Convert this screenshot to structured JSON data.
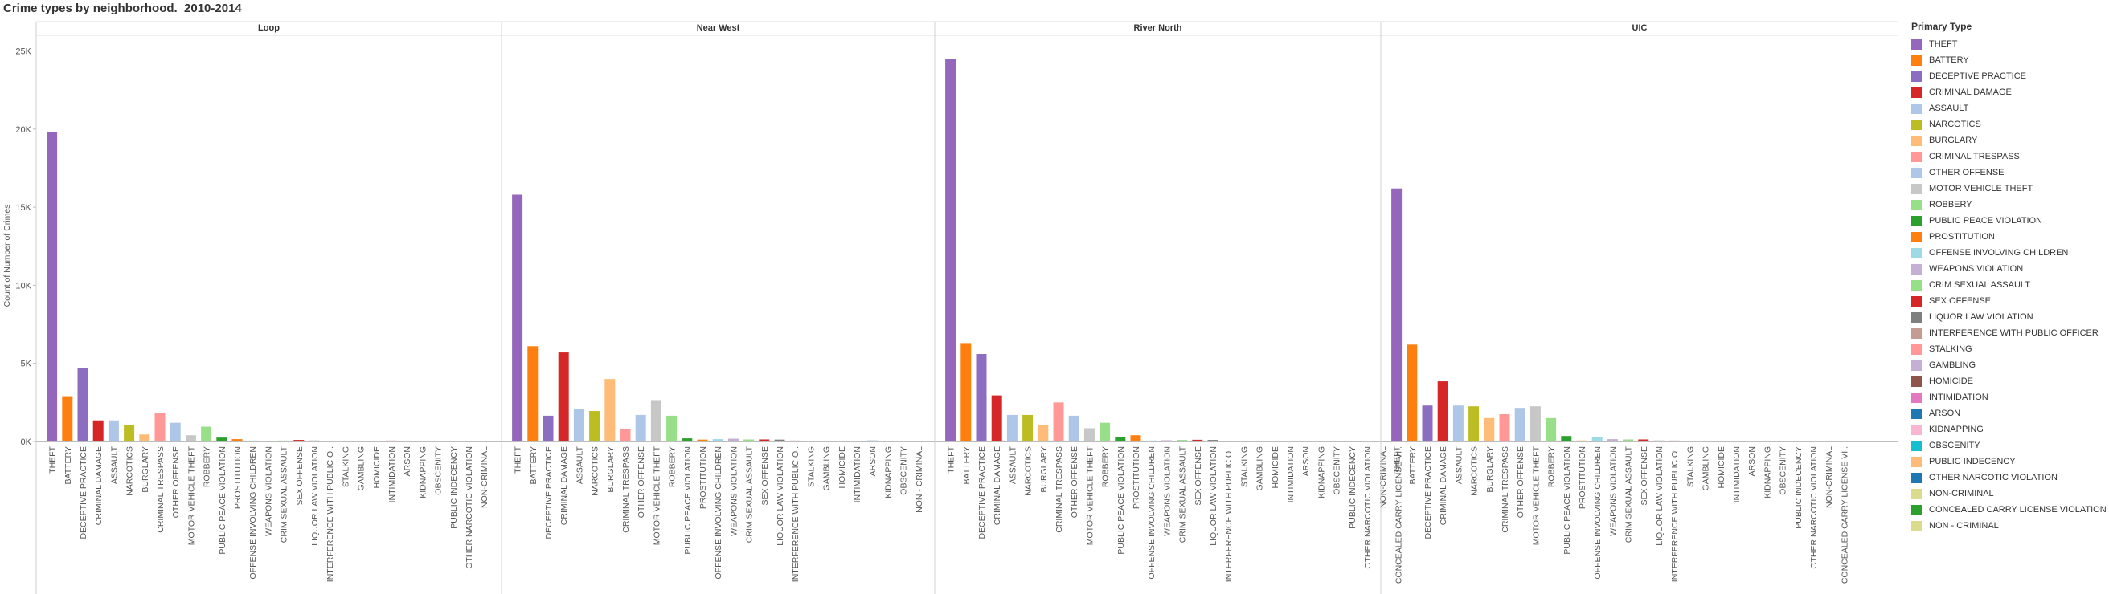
{
  "title": "Crime types by neighborhood.  2010-2014",
  "legend": {
    "title": "Primary Type"
  },
  "chart_data": {
    "type": "bar",
    "title": "Crime types by neighborhood.  2010-2014",
    "ylabel": "Count of Number of Crimes",
    "ylim": [
      0,
      26000
    ],
    "yticks": [
      0,
      5000,
      10000,
      15000,
      20000,
      25000
    ],
    "ytick_labels": [
      "0K",
      "5K",
      "10K",
      "15K",
      "20K",
      "25K"
    ],
    "legend_position": "right",
    "crime_types": [
      {
        "name": "THEFT",
        "color": "#9467bd"
      },
      {
        "name": "BATTERY",
        "color": "#ff7f0e"
      },
      {
        "name": "DECEPTIVE PRACTICE",
        "color": "#8c6dbf"
      },
      {
        "name": "CRIMINAL DAMAGE",
        "color": "#d62728"
      },
      {
        "name": "ASSAULT",
        "color": "#aec7e8"
      },
      {
        "name": "NARCOTICS",
        "color": "#bcbd22"
      },
      {
        "name": "BURGLARY",
        "color": "#ffbb78"
      },
      {
        "name": "CRIMINAL TRESPASS",
        "color": "#ff9896"
      },
      {
        "name": "OTHER OFFENSE",
        "color": "#aec7e8"
      },
      {
        "name": "MOTOR VEHICLE THEFT",
        "color": "#c7c7c7"
      },
      {
        "name": "ROBBERY",
        "color": "#98df8a"
      },
      {
        "name": "PUBLIC PEACE VIOLATION",
        "color": "#2ca02c"
      },
      {
        "name": "PROSTITUTION",
        "color": "#ff7f0e"
      },
      {
        "name": "OFFENSE INVOLVING CHILDREN",
        "color": "#9edae5"
      },
      {
        "name": "WEAPONS VIOLATION",
        "color": "#c5b0d5"
      },
      {
        "name": "CRIM SEXUAL ASSAULT",
        "color": "#98df8a"
      },
      {
        "name": "SEX OFFENSE",
        "color": "#d62728"
      },
      {
        "name": "LIQUOR LAW VIOLATION",
        "color": "#7f7f7f"
      },
      {
        "name": "INTERFERENCE WITH PUBLIC OFFICER",
        "color": "#c49c94"
      },
      {
        "name": "STALKING",
        "color": "#ff9896"
      },
      {
        "name": "GAMBLING",
        "color": "#c5b0d5"
      },
      {
        "name": "HOMICIDE",
        "color": "#8c564b"
      },
      {
        "name": "INTIMIDATION",
        "color": "#e377c2"
      },
      {
        "name": "ARSON",
        "color": "#1f77b4"
      },
      {
        "name": "KIDNAPPING",
        "color": "#f7b6d2"
      },
      {
        "name": "OBSCENITY",
        "color": "#17becf"
      },
      {
        "name": "PUBLIC INDECENCY",
        "color": "#ffbb78"
      },
      {
        "name": "OTHER NARCOTIC VIOLATION",
        "color": "#1f77b4"
      },
      {
        "name": "NON-CRIMINAL",
        "color": "#dbdb8d"
      },
      {
        "name": "CONCEALED CARRY LICENSE VIOLATION",
        "color": "#2ca02c"
      },
      {
        "name": "NON - CRIMINAL",
        "color": "#dbdb8d"
      }
    ],
    "panels": [
      {
        "name": "Loop",
        "bars": [
          {
            "label": "THEFT",
            "type": "THEFT",
            "value": 19800
          },
          {
            "label": "BATTERY",
            "type": "BATTERY",
            "value": 2900
          },
          {
            "label": "DECEPTIVE PRACTICE",
            "type": "DECEPTIVE PRACTICE",
            "value": 4700
          },
          {
            "label": "CRIMINAL DAMAGE",
            "type": "CRIMINAL DAMAGE",
            "value": 1350
          },
          {
            "label": "ASSAULT",
            "type": "ASSAULT",
            "value": 1350
          },
          {
            "label": "NARCOTICS",
            "type": "NARCOTICS",
            "value": 1050
          },
          {
            "label": "BURGLARY",
            "type": "BURGLARY",
            "value": 450
          },
          {
            "label": "CRIMINAL TRESPASS",
            "type": "CRIMINAL TRESPASS",
            "value": 1850
          },
          {
            "label": "OTHER OFFENSE",
            "type": "OTHER OFFENSE",
            "value": 1200
          },
          {
            "label": "MOTOR VEHICLE THEFT",
            "type": "MOTOR VEHICLE THEFT",
            "value": 400
          },
          {
            "label": "ROBBERY",
            "type": "ROBBERY",
            "value": 950
          },
          {
            "label": "PUBLIC PEACE VIOLATION",
            "type": "PUBLIC PEACE VIOLATION",
            "value": 250
          },
          {
            "label": "PROSTITUTION",
            "type": "PROSTITUTION",
            "value": 150
          },
          {
            "label": "OFFENSE INVOLVING CHILDREN",
            "type": "OFFENSE INVOLVING CHILDREN",
            "value": 60
          },
          {
            "label": "WEAPONS VIOLATION",
            "type": "WEAPONS VIOLATION",
            "value": 50
          },
          {
            "label": "CRIM SEXUAL ASSAULT",
            "type": "CRIM SEXUAL ASSAULT",
            "value": 60
          },
          {
            "label": "SEX OFFENSE",
            "type": "SEX OFFENSE",
            "value": 100
          },
          {
            "label": "LIQUOR LAW VIOLATION",
            "type": "LIQUOR LAW VIOLATION",
            "value": 60
          },
          {
            "label": "INTERFERENCE WITH PUBLIC O..",
            "type": "INTERFERENCE WITH PUBLIC OFFICER",
            "value": 40
          },
          {
            "label": "STALKING",
            "type": "STALKING",
            "value": 20
          },
          {
            "label": "GAMBLING",
            "type": "GAMBLING",
            "value": 10
          },
          {
            "label": "HOMICIDE",
            "type": "HOMICIDE",
            "value": 10
          },
          {
            "label": "INTIMIDATION",
            "type": "INTIMIDATION",
            "value": 60
          },
          {
            "label": "ARSON",
            "type": "ARSON",
            "value": 10
          },
          {
            "label": "KIDNAPPING",
            "type": "KIDNAPPING",
            "value": 10
          },
          {
            "label": "OBSCENITY",
            "type": "OBSCENITY",
            "value": 5
          },
          {
            "label": "PUBLIC INDECENCY",
            "type": "PUBLIC INDECENCY",
            "value": 5
          },
          {
            "label": "OTHER NARCOTIC VIOLATION",
            "type": "OTHER NARCOTIC VIOLATION",
            "value": 3
          },
          {
            "label": "NON-CRIMINAL",
            "type": "NON-CRIMINAL",
            "value": 3
          }
        ]
      },
      {
        "name": "Near West",
        "bars": [
          {
            "label": "THEFT",
            "type": "THEFT",
            "value": 15800
          },
          {
            "label": "BATTERY",
            "type": "BATTERY",
            "value": 6100
          },
          {
            "label": "DECEPTIVE PRACTICE",
            "type": "DECEPTIVE PRACTICE",
            "value": 1650
          },
          {
            "label": "CRIMINAL DAMAGE",
            "type": "CRIMINAL DAMAGE",
            "value": 5700
          },
          {
            "label": "ASSAULT",
            "type": "ASSAULT",
            "value": 2100
          },
          {
            "label": "NARCOTICS",
            "type": "NARCOTICS",
            "value": 1950
          },
          {
            "label": "BURGLARY",
            "type": "BURGLARY",
            "value": 4000
          },
          {
            "label": "CRIMINAL TRESPASS",
            "type": "CRIMINAL TRESPASS",
            "value": 800
          },
          {
            "label": "OTHER OFFENSE",
            "type": "OTHER OFFENSE",
            "value": 1700
          },
          {
            "label": "MOTOR VEHICLE THEFT",
            "type": "MOTOR VEHICLE THEFT",
            "value": 2650
          },
          {
            "label": "ROBBERY",
            "type": "ROBBERY",
            "value": 1650
          },
          {
            "label": "PUBLIC PEACE VIOLATION",
            "type": "PUBLIC PEACE VIOLATION",
            "value": 200
          },
          {
            "label": "PROSTITUTION",
            "type": "PROSTITUTION",
            "value": 120
          },
          {
            "label": "OFFENSE INVOLVING CHILDREN",
            "type": "OFFENSE INVOLVING CHILDREN",
            "value": 150
          },
          {
            "label": "WEAPONS VIOLATION",
            "type": "WEAPONS VIOLATION",
            "value": 180
          },
          {
            "label": "CRIM SEXUAL ASSAULT",
            "type": "CRIM SEXUAL ASSAULT",
            "value": 130
          },
          {
            "label": "SEX OFFENSE",
            "type": "SEX OFFENSE",
            "value": 130
          },
          {
            "label": "LIQUOR LAW VIOLATION",
            "type": "LIQUOR LAW VIOLATION",
            "value": 120
          },
          {
            "label": "INTERFERENCE WITH PUBLIC O..",
            "type": "INTERFERENCE WITH PUBLIC OFFICER",
            "value": 60
          },
          {
            "label": "STALKING",
            "type": "STALKING",
            "value": 40
          },
          {
            "label": "GAMBLING",
            "type": "GAMBLING",
            "value": 20
          },
          {
            "label": "HOMICIDE",
            "type": "HOMICIDE",
            "value": 20
          },
          {
            "label": "INTIMIDATION",
            "type": "INTIMIDATION",
            "value": 15
          },
          {
            "label": "ARSON",
            "type": "ARSON",
            "value": 60
          },
          {
            "label": "KIDNAPPING",
            "type": "KIDNAPPING",
            "value": 15
          },
          {
            "label": "OBSCENITY",
            "type": "OBSCENITY",
            "value": 5
          },
          {
            "label": "NON - CRIMINAL",
            "type": "NON - CRIMINAL",
            "value": 3
          }
        ]
      },
      {
        "name": "River North",
        "bars": [
          {
            "label": "THEFT",
            "type": "THEFT",
            "value": 24500
          },
          {
            "label": "BATTERY",
            "type": "BATTERY",
            "value": 6300
          },
          {
            "label": "DECEPTIVE PRACTICE",
            "type": "DECEPTIVE PRACTICE",
            "value": 5600
          },
          {
            "label": "CRIMINAL DAMAGE",
            "type": "CRIMINAL DAMAGE",
            "value": 2950
          },
          {
            "label": "ASSAULT",
            "type": "ASSAULT",
            "value": 1700
          },
          {
            "label": "NARCOTICS",
            "type": "NARCOTICS",
            "value": 1700
          },
          {
            "label": "BURGLARY",
            "type": "BURGLARY",
            "value": 1050
          },
          {
            "label": "CRIMINAL TRESPASS",
            "type": "CRIMINAL TRESPASS",
            "value": 2500
          },
          {
            "label": "OTHER OFFENSE",
            "type": "OTHER OFFENSE",
            "value": 1650
          },
          {
            "label": "MOTOR VEHICLE THEFT",
            "type": "MOTOR VEHICLE THEFT",
            "value": 850
          },
          {
            "label": "ROBBERY",
            "type": "ROBBERY",
            "value": 1200
          },
          {
            "label": "PUBLIC PEACE VIOLATION",
            "type": "PUBLIC PEACE VIOLATION",
            "value": 280
          },
          {
            "label": "PROSTITUTION",
            "type": "PROSTITUTION",
            "value": 400
          },
          {
            "label": "OFFENSE INVOLVING CHILDREN",
            "type": "OFFENSE INVOLVING CHILDREN",
            "value": 60
          },
          {
            "label": "WEAPONS VIOLATION",
            "type": "WEAPONS VIOLATION",
            "value": 80
          },
          {
            "label": "CRIM SEXUAL ASSAULT",
            "type": "CRIM SEXUAL ASSAULT",
            "value": 100
          },
          {
            "label": "SEX OFFENSE",
            "type": "SEX OFFENSE",
            "value": 110
          },
          {
            "label": "LIQUOR LAW VIOLATION",
            "type": "LIQUOR LAW VIOLATION",
            "value": 100
          },
          {
            "label": "INTERFERENCE WITH PUBLIC O..",
            "type": "INTERFERENCE WITH PUBLIC OFFICER",
            "value": 50
          },
          {
            "label": "STALKING",
            "type": "STALKING",
            "value": 30
          },
          {
            "label": "GAMBLING",
            "type": "GAMBLING",
            "value": 20
          },
          {
            "label": "HOMICIDE",
            "type": "HOMICIDE",
            "value": 10
          },
          {
            "label": "INTIMIDATION",
            "type": "INTIMIDATION",
            "value": 10
          },
          {
            "label": "ARSON",
            "type": "ARSON",
            "value": 10
          },
          {
            "label": "KIDNAPPING",
            "type": "KIDNAPPING",
            "value": 10
          },
          {
            "label": "OBSCENITY",
            "type": "OBSCENITY",
            "value": 5
          },
          {
            "label": "PUBLIC INDECENCY",
            "type": "PUBLIC INDECENCY",
            "value": 5
          },
          {
            "label": "OTHER NARCOTIC VIOLATION",
            "type": "OTHER NARCOTIC VIOLATION",
            "value": 3
          },
          {
            "label": "NON-CRIMINAL",
            "type": "NON-CRIMINAL",
            "value": 3
          },
          {
            "label": "CONCEALED CARRY LICENSE VI..",
            "type": "CONCEALED CARRY LICENSE VIOLATION",
            "value": 3
          }
        ]
      },
      {
        "name": "UIC",
        "bars": [
          {
            "label": "THEFT",
            "type": "THEFT",
            "value": 16200
          },
          {
            "label": "BATTERY",
            "type": "BATTERY",
            "value": 6200
          },
          {
            "label": "DECEPTIVE PRACTICE",
            "type": "DECEPTIVE PRACTICE",
            "value": 2300
          },
          {
            "label": "CRIMINAL DAMAGE",
            "type": "CRIMINAL DAMAGE",
            "value": 3850
          },
          {
            "label": "ASSAULT",
            "type": "ASSAULT",
            "value": 2300
          },
          {
            "label": "NARCOTICS",
            "type": "NARCOTICS",
            "value": 2250
          },
          {
            "label": "BURGLARY",
            "type": "BURGLARY",
            "value": 1500
          },
          {
            "label": "CRIMINAL TRESPASS",
            "type": "CRIMINAL TRESPASS",
            "value": 1750
          },
          {
            "label": "OTHER OFFENSE",
            "type": "OTHER OFFENSE",
            "value": 2150
          },
          {
            "label": "MOTOR VEHICLE THEFT",
            "type": "MOTOR VEHICLE THEFT",
            "value": 2250
          },
          {
            "label": "ROBBERY",
            "type": "ROBBERY",
            "value": 1500
          },
          {
            "label": "PUBLIC PEACE VIOLATION",
            "type": "PUBLIC PEACE VIOLATION",
            "value": 350
          },
          {
            "label": "PROSTITUTION",
            "type": "PROSTITUTION",
            "value": 60
          },
          {
            "label": "OFFENSE INVOLVING CHILDREN",
            "type": "OFFENSE INVOLVING CHILDREN",
            "value": 300
          },
          {
            "label": "WEAPONS VIOLATION",
            "type": "WEAPONS VIOLATION",
            "value": 150
          },
          {
            "label": "CRIM SEXUAL ASSAULT",
            "type": "CRIM SEXUAL ASSAULT",
            "value": 130
          },
          {
            "label": "SEX OFFENSE",
            "type": "SEX OFFENSE",
            "value": 130
          },
          {
            "label": "LIQUOR LAW VIOLATION",
            "type": "LIQUOR LAW VIOLATION",
            "value": 60
          },
          {
            "label": "INTERFERENCE WITH PUBLIC O..",
            "type": "INTERFERENCE WITH PUBLIC OFFICER",
            "value": 60
          },
          {
            "label": "STALKING",
            "type": "STALKING",
            "value": 40
          },
          {
            "label": "GAMBLING",
            "type": "GAMBLING",
            "value": 20
          },
          {
            "label": "HOMICIDE",
            "type": "HOMICIDE",
            "value": 40
          },
          {
            "label": "INTIMIDATION",
            "type": "INTIMIDATION",
            "value": 15
          },
          {
            "label": "ARSON",
            "type": "ARSON",
            "value": 15
          },
          {
            "label": "KIDNAPPING",
            "type": "KIDNAPPING",
            "value": 10
          },
          {
            "label": "OBSCENITY",
            "type": "OBSCENITY",
            "value": 5
          },
          {
            "label": "PUBLIC INDECENCY",
            "type": "PUBLIC INDECENCY",
            "value": 5
          },
          {
            "label": "OTHER NARCOTIC VIOLATION",
            "type": "OTHER NARCOTIC VIOLATION",
            "value": 3
          },
          {
            "label": "NON-CRIMINAL",
            "type": "NON-CRIMINAL",
            "value": 3
          },
          {
            "label": "CONCEALED CARRY LICENSE VI..",
            "type": "CONCEALED CARRY LICENSE VIOLATION",
            "value": 3
          }
        ]
      }
    ]
  }
}
